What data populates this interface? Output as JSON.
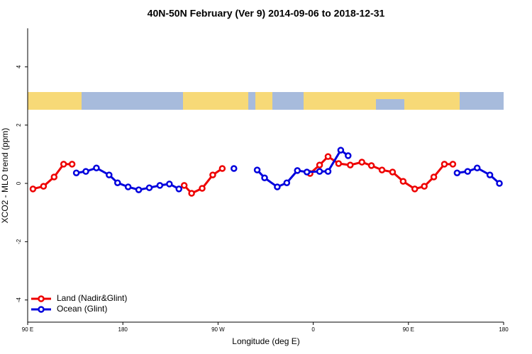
{
  "chart_data": {
    "type": "line",
    "title": "40N-50N February (Ver 9)   2014-09-06 to 2018-12-31",
    "x_label": "Longitude (deg E)",
    "y_label": "XCO2 - MLO trend (ppm)",
    "xlim": [
      90,
      540
    ],
    "ylim": [
      -4.76,
      5.32
    ],
    "xticks": [
      {
        "value": 90,
        "label": "90 E"
      },
      180,
      {
        "value": 270,
        "label": "90 W"
      },
      {
        "value": 360,
        "label": "0"
      },
      {
        "value": 450,
        "label": "90 E"
      },
      {
        "value": 540,
        "label": "180"
      }
    ],
    "yticks": [
      -4,
      -2,
      0,
      2,
      4
    ],
    "legend": "bottom-left",
    "series": [
      {
        "name": "Land (Nadir&Glint)",
        "color": "#ee0000",
        "x": [
          95,
          105,
          115,
          124,
          132,
          null,
          238,
          245,
          255,
          265,
          274,
          null,
          357,
          366,
          374,
          384,
          395,
          406,
          415,
          425,
          435,
          445,
          456,
          465,
          474,
          484,
          492
        ],
        "values": [
          -0.19,
          -0.1,
          0.22,
          0.66,
          0.66,
          null,
          -0.07,
          -0.34,
          -0.17,
          0.29,
          0.51,
          null,
          0.34,
          0.63,
          0.92,
          0.68,
          0.63,
          0.73,
          0.61,
          0.46,
          0.39,
          0.07,
          -0.19,
          -0.1,
          0.22,
          0.66,
          0.66
        ]
      },
      {
        "name": "Ocean (Glint)",
        "color": "#0000dd",
        "x": [
          136,
          145,
          155,
          167,
          175,
          185,
          195,
          205,
          215,
          224,
          233,
          null,
          285,
          null,
          307,
          314,
          326,
          335,
          345,
          354,
          366,
          374,
          386,
          393,
          null,
          496,
          506,
          515,
          527,
          536
        ],
        "values": [
          0.36,
          0.41,
          0.53,
          0.29,
          0.02,
          -0.12,
          -0.22,
          -0.15,
          -0.07,
          -0.02,
          -0.19,
          null,
          0.51,
          null,
          0.46,
          0.19,
          -0.12,
          0.02,
          0.44,
          0.39,
          0.41,
          0.41,
          1.14,
          0.95,
          null,
          0.36,
          0.41,
          0.53,
          0.29,
          0
        ]
      }
    ]
  }
}
